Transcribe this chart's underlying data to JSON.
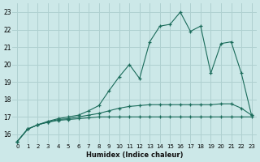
{
  "xlabel": "Humidex (Indice chaleur)",
  "background_color": "#cce8e8",
  "grid_color": "#afd0d0",
  "line_color": "#1a6b5a",
  "xlim": [
    -0.5,
    23.5
  ],
  "ylim": [
    15.5,
    23.5
  ],
  "xticks": [
    0,
    1,
    2,
    3,
    4,
    5,
    6,
    7,
    8,
    9,
    10,
    11,
    12,
    13,
    14,
    15,
    16,
    17,
    18,
    19,
    20,
    21,
    22,
    23
  ],
  "yticks": [
    16,
    17,
    18,
    19,
    20,
    21,
    22,
    23
  ],
  "s1_y": [
    15.6,
    16.3,
    16.55,
    16.7,
    16.8,
    16.85,
    16.9,
    16.95,
    17.0,
    17.0,
    17.0,
    17.0,
    17.0,
    17.0,
    17.0,
    17.0,
    17.0,
    17.0,
    17.0,
    17.0,
    17.0,
    17.0,
    17.0,
    17.0
  ],
  "s2_y": [
    15.6,
    16.3,
    16.55,
    16.7,
    16.85,
    16.9,
    17.0,
    17.1,
    17.2,
    17.35,
    17.5,
    17.6,
    17.65,
    17.7,
    17.7,
    17.7,
    17.7,
    17.7,
    17.7,
    17.7,
    17.75,
    17.75,
    17.5,
    17.1
  ],
  "s3_y": [
    15.6,
    16.3,
    16.55,
    16.75,
    16.9,
    17.0,
    17.1,
    17.35,
    17.65,
    18.5,
    19.3,
    20.0,
    19.2,
    21.3,
    22.2,
    22.3,
    23.0,
    21.9,
    22.2,
    19.5,
    21.2,
    21.3,
    19.5,
    17.1
  ]
}
